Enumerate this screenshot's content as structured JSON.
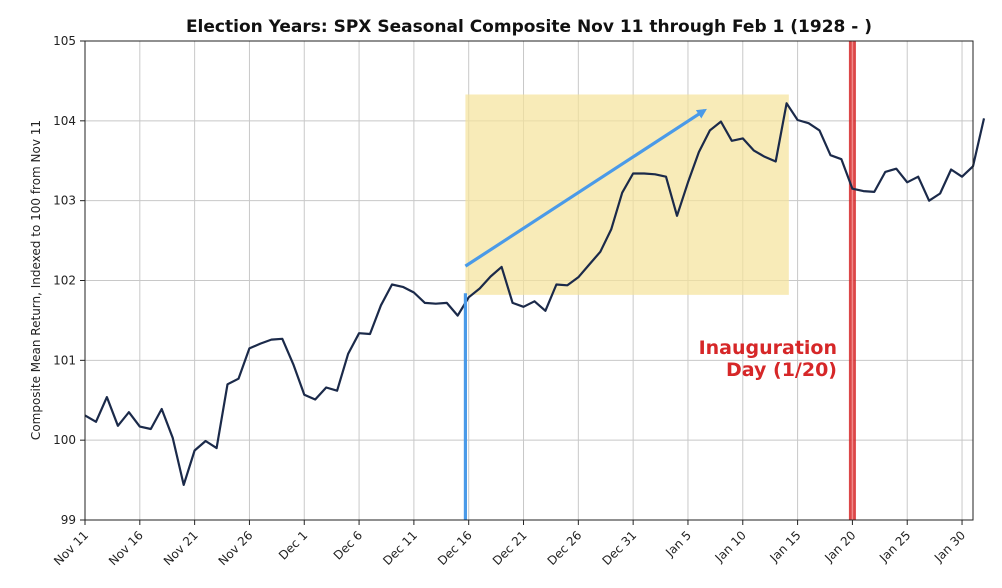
{
  "chart_data": {
    "type": "line",
    "title": "Election Years: SPX Seasonal Composite Nov 11 through Feb 1 (1928 - )",
    "xlabel": "",
    "ylabel": "Composite Mean Return, Indexed to 100 from Nov 11",
    "ylim": [
      99,
      105
    ],
    "yticks": [
      99,
      100,
      101,
      102,
      103,
      104,
      105
    ],
    "xlim": [
      0,
      81
    ],
    "xticks": [
      {
        "x": 0,
        "label": "Nov 11"
      },
      {
        "x": 5,
        "label": "Nov 16"
      },
      {
        "x": 10,
        "label": "Nov 21"
      },
      {
        "x": 15,
        "label": "Nov 26"
      },
      {
        "x": 20,
        "label": "Dec 1"
      },
      {
        "x": 25,
        "label": "Dec 6"
      },
      {
        "x": 30,
        "label": "Dec 11"
      },
      {
        "x": 35,
        "label": "Dec 16"
      },
      {
        "x": 40,
        "label": "Dec 21"
      },
      {
        "x": 45,
        "label": "Dec 26"
      },
      {
        "x": 50,
        "label": "Dec 31"
      },
      {
        "x": 55,
        "label": "Jan 5"
      },
      {
        "x": 60,
        "label": "Jan 10"
      },
      {
        "x": 65,
        "label": "Jan 15"
      },
      {
        "x": 70,
        "label": "Jan 20"
      },
      {
        "x": 75,
        "label": "Jan 25"
      },
      {
        "x": 80,
        "label": "Jan 30"
      }
    ],
    "grid": true,
    "series": [
      {
        "color": "#1b2a4a",
        "points": [
          [
            0,
            100.31
          ],
          [
            1,
            100.23
          ],
          [
            2,
            100.54
          ],
          [
            3,
            100.18
          ],
          [
            4,
            100.35
          ],
          [
            5,
            100.17
          ],
          [
            6,
            100.14
          ],
          [
            7,
            100.39
          ],
          [
            8,
            100.03
          ],
          [
            9,
            99.44
          ],
          [
            10,
            99.87
          ],
          [
            11,
            99.99
          ],
          [
            12,
            99.9
          ],
          [
            13,
            100.7
          ],
          [
            14,
            100.77
          ],
          [
            15,
            101.15
          ],
          [
            16,
            101.21
          ],
          [
            17,
            101.26
          ],
          [
            18,
            101.27
          ],
          [
            19,
            100.95
          ],
          [
            20,
            100.57
          ],
          [
            21,
            100.51
          ],
          [
            22,
            100.66
          ],
          [
            23,
            100.62
          ],
          [
            24,
            101.08
          ],
          [
            25,
            101.34
          ],
          [
            26,
            101.33
          ],
          [
            27,
            101.69
          ],
          [
            28,
            101.95
          ],
          [
            29,
            101.92
          ],
          [
            30,
            101.85
          ],
          [
            31,
            101.72
          ],
          [
            32,
            101.71
          ],
          [
            33,
            101.72
          ],
          [
            34,
            101.56
          ],
          [
            35,
            101.79
          ],
          [
            36,
            101.9
          ],
          [
            37,
            102.05
          ],
          [
            38,
            102.17
          ],
          [
            39,
            101.72
          ],
          [
            40,
            101.67
          ],
          [
            41,
            101.74
          ],
          [
            42,
            101.62
          ],
          [
            43,
            101.95
          ],
          [
            44,
            101.94
          ],
          [
            45,
            102.04
          ],
          [
            46,
            102.2
          ],
          [
            47,
            102.36
          ],
          [
            48,
            102.64
          ],
          [
            49,
            103.1
          ],
          [
            50,
            103.34
          ],
          [
            51,
            103.34
          ],
          [
            52,
            103.33
          ],
          [
            53,
            103.3
          ],
          [
            54,
            102.81
          ],
          [
            55,
            103.23
          ],
          [
            56,
            103.61
          ],
          [
            57,
            103.88
          ],
          [
            58,
            103.99
          ],
          [
            59,
            103.75
          ],
          [
            60,
            103.78
          ],
          [
            61,
            103.63
          ],
          [
            62,
            103.55
          ],
          [
            63,
            103.49
          ],
          [
            64,
            104.22
          ],
          [
            65,
            104.01
          ],
          [
            66,
            103.97
          ],
          [
            67,
            103.88
          ],
          [
            68,
            103.57
          ],
          [
            69,
            103.52
          ],
          [
            70,
            103.15
          ],
          [
            71,
            103.12
          ],
          [
            72,
            103.11
          ],
          [
            73,
            103.36
          ],
          [
            74,
            103.4
          ],
          [
            75,
            103.23
          ],
          [
            76,
            103.3
          ],
          [
            77,
            103.0
          ],
          [
            78,
            103.09
          ],
          [
            79,
            103.39
          ],
          [
            80,
            103.3
          ],
          [
            81,
            103.43
          ],
          [
            82,
            104.03
          ]
        ]
      }
    ],
    "highlight_region": {
      "x0": 34.7,
      "x1": 64.2,
      "y0": 101.82,
      "y1": 104.33,
      "color": "#f5e39a"
    },
    "vertical_marker": {
      "x": 70,
      "color": "#d62728"
    },
    "annotation": {
      "lines": [
        "Inauguration",
        "Day (1/20)"
      ],
      "color": "#d62728"
    },
    "arrows": [
      {
        "from": [
          34.7,
          102.18
        ],
        "to": [
          56.5,
          104.13
        ],
        "color": "#4a9ae8"
      },
      {
        "from": [
          34.7,
          99.0
        ],
        "to": [
          34.7,
          101.84
        ],
        "color": "#4a9ae8"
      }
    ]
  }
}
